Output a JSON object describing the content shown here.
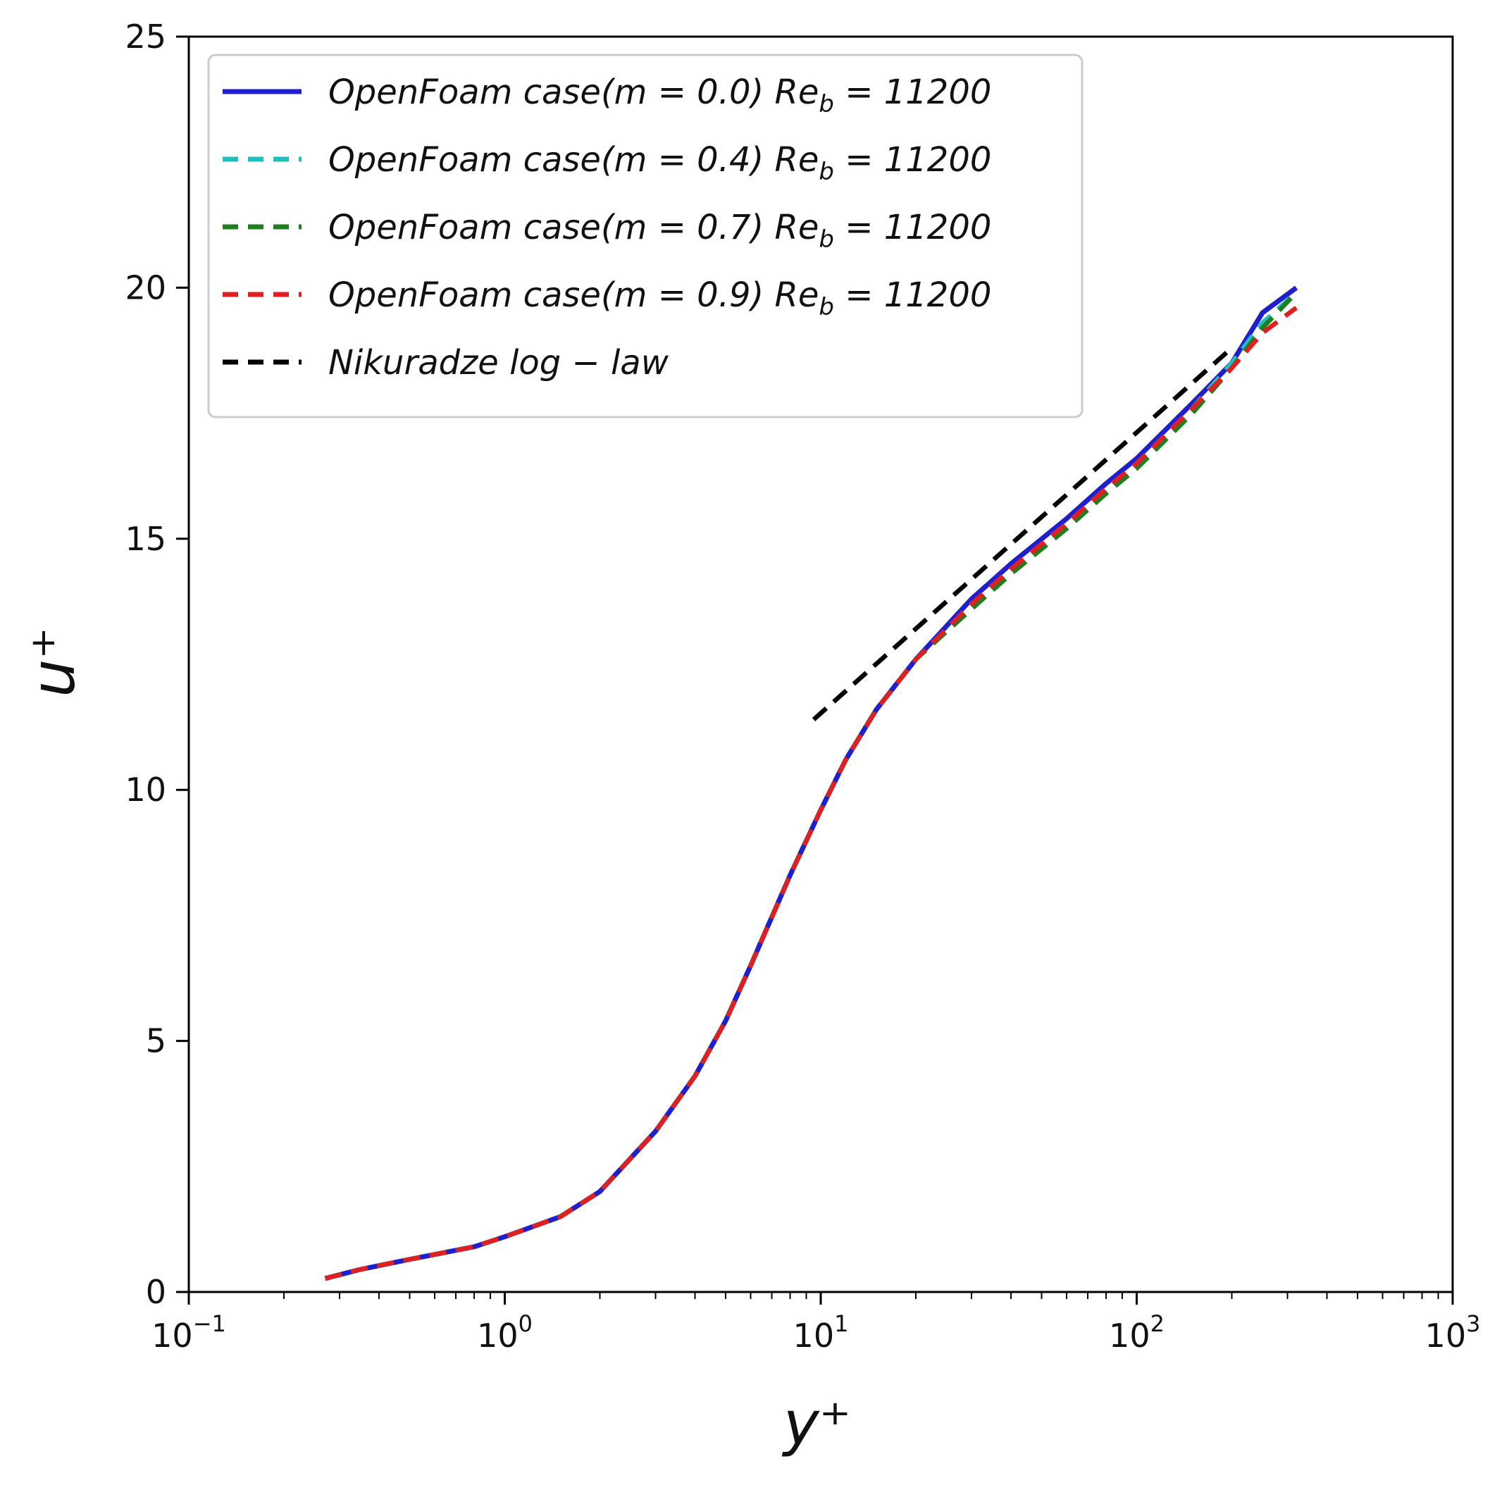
{
  "chart_data": {
    "type": "line",
    "x_scale": "log",
    "xlabel": "y⁺",
    "ylabel": "u⁺",
    "xlim": [
      0.1,
      1000
    ],
    "ylim": [
      0,
      25
    ],
    "x_ticks": [
      {
        "value": 0.1,
        "base": "10",
        "exp": "−1"
      },
      {
        "value": 1,
        "base": "10",
        "exp": "0"
      },
      {
        "value": 10,
        "base": "10",
        "exp": "1"
      },
      {
        "value": 100,
        "base": "10",
        "exp": "2"
      },
      {
        "value": 1000,
        "base": "10",
        "exp": "3"
      }
    ],
    "y_ticks": [
      0,
      5,
      10,
      15,
      20,
      25
    ],
    "grid": false,
    "legend_position": "top-left",
    "series": [
      {
        "name": "OpenFoam case(m = 0.0)  Re_b = 11200",
        "legend": {
          "prefix": "OpenFoam  case(m = 0.0)  Re",
          "sub": "b",
          "suffix": " = 11200"
        },
        "color": "#1f1fcf",
        "style": "solid",
        "x": [
          0.27,
          0.35,
          0.5,
          0.8,
          1.0,
          1.5,
          2.0,
          3.0,
          4.0,
          5.0,
          6.0,
          8.0,
          10.0,
          12.0,
          15.0,
          20.0,
          30.0,
          40.0,
          60.0,
          80.0,
          100.0,
          150.0,
          200.0,
          250.0,
          320.0
        ],
        "y": [
          0.27,
          0.45,
          0.65,
          0.9,
          1.1,
          1.5,
          2.0,
          3.2,
          4.3,
          5.4,
          6.5,
          8.3,
          9.6,
          10.6,
          11.6,
          12.6,
          13.8,
          14.5,
          15.4,
          16.1,
          16.6,
          17.7,
          18.5,
          19.5,
          20.0
        ]
      },
      {
        "name": "OpenFoam case(m = 0.4)  Re_b = 11200",
        "legend": {
          "prefix": "OpenFoam  case(m = 0.4)  Re",
          "sub": "b",
          "suffix": " = 11200"
        },
        "color": "#1fbfbf",
        "style": "dashed",
        "x": [
          0.27,
          0.35,
          0.5,
          0.8,
          1.0,
          1.5,
          2.0,
          3.0,
          4.0,
          5.0,
          6.0,
          8.0,
          10.0,
          12.0,
          15.0,
          20.0,
          30.0,
          40.0,
          60.0,
          80.0,
          100.0,
          150.0,
          200.0,
          250.0,
          320.0
        ],
        "y": [
          0.27,
          0.45,
          0.65,
          0.9,
          1.1,
          1.5,
          2.0,
          3.2,
          4.3,
          5.4,
          6.5,
          8.3,
          9.6,
          10.6,
          11.6,
          12.6,
          13.7,
          14.4,
          15.3,
          16.0,
          16.5,
          17.6,
          18.5,
          19.3,
          19.9
        ]
      },
      {
        "name": "OpenFoam case(m = 0.7)  Re_b = 11200",
        "legend": {
          "prefix": "OpenFoam  case(m = 0.7)  Re",
          "sub": "b",
          "suffix": " = 11200"
        },
        "color": "#1f7f1f",
        "style": "dashed",
        "x": [
          0.27,
          0.35,
          0.5,
          0.8,
          1.0,
          1.5,
          2.0,
          3.0,
          4.0,
          5.0,
          6.0,
          8.0,
          10.0,
          12.0,
          15.0,
          20.0,
          30.0,
          40.0,
          60.0,
          80.0,
          100.0,
          150.0,
          200.0,
          250.0,
          320.0
        ],
        "y": [
          0.27,
          0.45,
          0.65,
          0.9,
          1.1,
          1.5,
          2.0,
          3.2,
          4.3,
          5.4,
          6.5,
          8.3,
          9.6,
          10.6,
          11.6,
          12.6,
          13.6,
          14.3,
          15.2,
          15.9,
          16.4,
          17.5,
          18.4,
          19.2,
          19.9
        ]
      },
      {
        "name": "OpenFoam case(m = 0.9)  Re_b = 11200",
        "legend": {
          "prefix": "OpenFoam  case(m = 0.9)  Re",
          "sub": "b",
          "suffix": " = 11200"
        },
        "color": "#e02020",
        "style": "dashed",
        "x": [
          0.27,
          0.35,
          0.5,
          0.8,
          1.0,
          1.5,
          2.0,
          3.0,
          4.0,
          5.0,
          6.0,
          8.0,
          10.0,
          12.0,
          15.0,
          20.0,
          30.0,
          40.0,
          60.0,
          80.0,
          100.0,
          150.0,
          200.0,
          250.0,
          320.0
        ],
        "y": [
          0.27,
          0.45,
          0.65,
          0.9,
          1.1,
          1.5,
          2.0,
          3.2,
          4.3,
          5.4,
          6.5,
          8.3,
          9.6,
          10.6,
          11.6,
          12.6,
          13.7,
          14.4,
          15.3,
          16.0,
          16.5,
          17.6,
          18.4,
          19.1,
          19.6
        ]
      },
      {
        "name": "Nikuradze log − law",
        "legend": {
          "prefix": "Nikuradze  log − law",
          "sub": "",
          "suffix": ""
        },
        "color": "#000000",
        "style": "dashed",
        "x": [
          9.5,
          200.0
        ],
        "y": [
          11.4,
          18.8
        ]
      }
    ]
  }
}
